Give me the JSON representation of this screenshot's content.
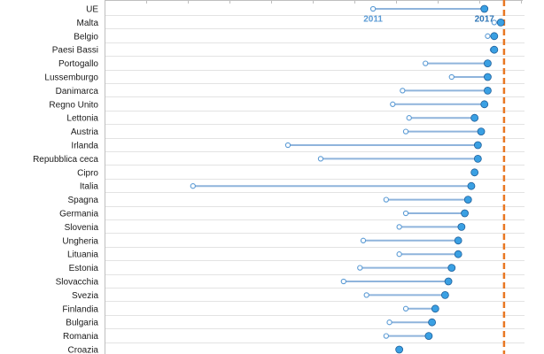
{
  "chart_data": {
    "type": "dumbbell",
    "categories": [
      "UE",
      "Malta",
      "Belgio",
      "Paesi Bassi",
      "Portogallo",
      "Lussemburgo",
      "Danimarca",
      "Regno Unito",
      "Lettonia",
      "Austria",
      "Irlanda",
      "Repubblica ceca",
      "Cipro",
      "Italia",
      "Spagna",
      "Germania",
      "Slovenia",
      "Ungheria",
      "Lituania",
      "Estonia",
      "Slovacchia",
      "Svezia",
      "Finlandia",
      "Bulgaria",
      "Romania",
      "Croazia"
    ],
    "series": [
      {
        "name": "2011",
        "values": [
          0.6,
          0.97,
          0.95,
          0.965,
          0.76,
          0.84,
          0.69,
          0.66,
          0.71,
          0.7,
          0.34,
          0.44,
          null,
          0.05,
          0.64,
          0.7,
          0.68,
          0.57,
          0.68,
          0.56,
          0.51,
          0.58,
          0.7,
          0.65,
          0.64,
          null
        ],
        "color": "#5b9bd5"
      },
      {
        "name": "2017",
        "values": [
          0.94,
          0.99,
          0.97,
          0.97,
          0.95,
          0.95,
          0.95,
          0.94,
          0.91,
          0.93,
          0.92,
          0.92,
          0.91,
          0.9,
          0.89,
          0.88,
          0.87,
          0.86,
          0.86,
          0.84,
          0.83,
          0.82,
          0.79,
          0.78,
          0.77,
          0.68
        ],
        "color": "#2e75b6"
      }
    ],
    "target_value": 1.0,
    "target_color": "#e87722",
    "xlim": [
      -0.22,
      1.03
    ],
    "grid": true,
    "annotations": [
      {
        "text": "2011",
        "series": "2011",
        "category": "UE",
        "color": "#5b9bd5"
      },
      {
        "text": "2017",
        "series": "2017",
        "category": "UE",
        "color": "#2e75b6"
      }
    ]
  }
}
